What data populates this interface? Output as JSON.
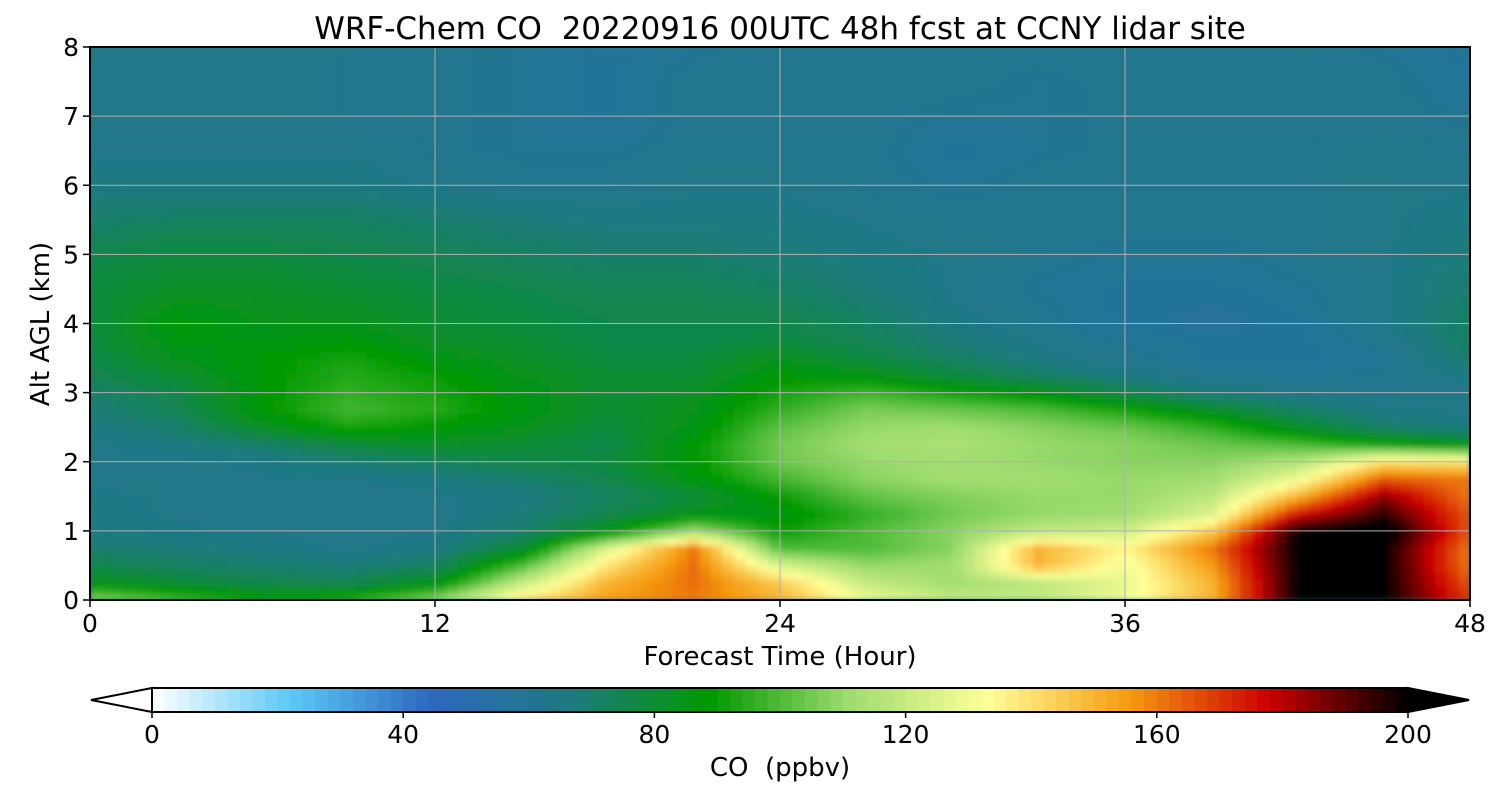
{
  "chart_data": {
    "type": "heatmap",
    "title": "WRF-Chem CO  20220916 00UTC 48h fcst at CCNY lidar site",
    "xlabel": "Forecast Time (Hour)",
    "ylabel": "Alt AGL (km)",
    "xlim": [
      0,
      48
    ],
    "ylim": [
      0,
      8
    ],
    "xticks": [
      0,
      12,
      24,
      36,
      48
    ],
    "yticks": [
      0,
      1,
      2,
      3,
      4,
      5,
      6,
      7,
      8
    ],
    "grid": true,
    "x": [
      0,
      3,
      6,
      9,
      12,
      15,
      18,
      21,
      24,
      27,
      30,
      33,
      36,
      39,
      42,
      45,
      48
    ],
    "y": [
      0,
      0.25,
      0.5,
      0.75,
      1,
      1.25,
      1.5,
      1.75,
      2,
      2.25,
      2.5,
      2.75,
      3,
      3.25,
      3.5,
      3.75,
      4,
      4.5,
      5,
      5.5,
      6,
      6.5,
      7,
      7.5,
      8
    ],
    "z": [
      [
        110,
        100,
        90,
        95,
        110,
        140,
        155,
        160,
        150,
        130,
        120,
        120,
        130,
        150,
        200,
        200,
        170
      ],
      [
        85,
        80,
        76,
        75,
        85,
        120,
        150,
        162,
        145,
        120,
        112,
        118,
        128,
        150,
        200,
        200,
        165
      ],
      [
        76,
        72,
        70,
        68,
        72,
        100,
        140,
        162,
        125,
        110,
        112,
        150,
        130,
        155,
        200,
        200,
        160
      ],
      [
        70,
        68,
        66,
        64,
        66,
        80,
        125,
        160,
        100,
        100,
        108,
        150,
        135,
        160,
        200,
        200,
        160
      ],
      [
        66,
        65,
        64,
        63,
        64,
        70,
        85,
        112,
        90,
        100,
        108,
        118,
        122,
        145,
        200,
        205,
        165
      ],
      [
        66,
        64,
        63,
        63,
        63,
        68,
        75,
        85,
        86,
        96,
        105,
        110,
        112,
        125,
        175,
        195,
        165
      ],
      [
        65,
        64,
        63,
        63,
        64,
        66,
        72,
        78,
        90,
        102,
        107,
        110,
        110,
        118,
        150,
        185,
        160
      ],
      [
        64,
        64,
        64,
        64,
        66,
        70,
        75,
        86,
        98,
        108,
        112,
        112,
        110,
        112,
        130,
        165,
        160
      ],
      [
        64,
        64,
        65,
        68,
        72,
        76,
        78,
        88,
        104,
        110,
        112,
        110,
        108,
        108,
        115,
        140,
        140
      ],
      [
        64,
        66,
        70,
        78,
        82,
        80,
        76,
        88,
        105,
        112,
        114,
        110,
        108,
        104,
        100,
        92,
        85
      ],
      [
        66,
        70,
        82,
        92,
        88,
        84,
        78,
        85,
        102,
        110,
        112,
        108,
        104,
        96,
        82,
        70,
        66
      ],
      [
        68,
        74,
        88,
        98,
        94,
        86,
        80,
        84,
        96,
        106,
        104,
        100,
        92,
        82,
        72,
        66,
        64
      ],
      [
        70,
        76,
        88,
        96,
        92,
        86,
        80,
        82,
        92,
        98,
        92,
        86,
        76,
        68,
        64,
        62,
        64
      ],
      [
        74,
        80,
        88,
        94,
        90,
        84,
        80,
        80,
        88,
        86,
        78,
        72,
        66,
        62,
        60,
        61,
        66
      ],
      [
        76,
        84,
        88,
        92,
        86,
        82,
        78,
        78,
        84,
        78,
        72,
        66,
        62,
        58,
        58,
        60,
        70
      ],
      [
        78,
        86,
        86,
        88,
        82,
        80,
        76,
        76,
        78,
        74,
        68,
        64,
        60,
        58,
        58,
        62,
        72
      ],
      [
        78,
        88,
        84,
        84,
        80,
        78,
        76,
        76,
        76,
        72,
        66,
        62,
        58,
        56,
        58,
        64,
        72
      ],
      [
        78,
        82,
        82,
        80,
        78,
        76,
        74,
        74,
        72,
        68,
        64,
        60,
        58,
        58,
        60,
        64,
        70
      ],
      [
        76,
        78,
        78,
        76,
        74,
        72,
        70,
        70,
        68,
        66,
        64,
        62,
        60,
        60,
        62,
        64,
        68
      ],
      [
        70,
        72,
        72,
        72,
        70,
        68,
        66,
        66,
        66,
        64,
        62,
        62,
        62,
        62,
        62,
        64,
        66
      ],
      [
        66,
        66,
        66,
        66,
        64,
        62,
        62,
        64,
        64,
        62,
        60,
        62,
        62,
        62,
        62,
        64,
        64
      ],
      [
        64,
        64,
        64,
        64,
        62,
        60,
        60,
        62,
        62,
        62,
        58,
        60,
        62,
        62,
        62,
        64,
        62
      ],
      [
        64,
        64,
        64,
        62,
        62,
        60,
        58,
        62,
        62,
        62,
        60,
        60,
        62,
        62,
        62,
        62,
        60
      ],
      [
        64,
        64,
        64,
        62,
        62,
        60,
        58,
        62,
        62,
        62,
        62,
        60,
        62,
        62,
        62,
        62,
        58
      ],
      [
        64,
        64,
        64,
        62,
        62,
        60,
        58,
        60,
        62,
        62,
        62,
        62,
        62,
        62,
        62,
        60,
        58
      ]
    ],
    "colorbar": {
      "label": "CO  (ppbv)",
      "min": 0,
      "max": 200,
      "ticks": [
        0,
        40,
        80,
        120,
        160,
        200
      ],
      "extend": "both",
      "colors": [
        "#ffffff",
        "#5ac8f5",
        "#2d68bf",
        "#1e7a80",
        "#009900",
        "#9fdc70",
        "#ffff99",
        "#f59a10",
        "#cc0000",
        "#000000"
      ]
    }
  }
}
